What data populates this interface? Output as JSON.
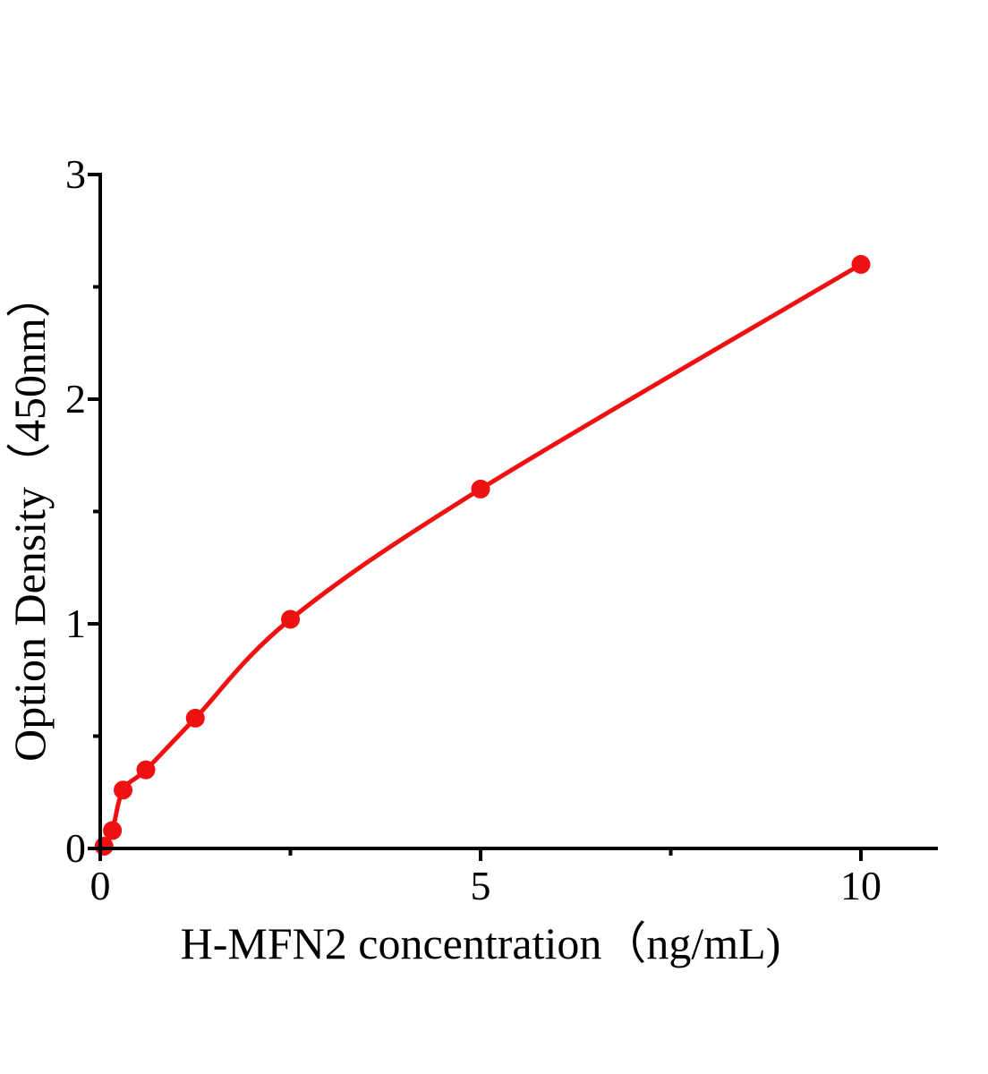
{
  "figure": {
    "background": "#ffffff"
  },
  "chart_data": {
    "type": "line",
    "title": "",
    "xlabel": "H-MFN2 concentration（ng/mL)",
    "ylabel": "Option Density（450nm）",
    "points": [
      {
        "x": 0.05,
        "y": 0.01
      },
      {
        "x": 0.16,
        "y": 0.08
      },
      {
        "x": 0.3,
        "y": 0.26
      },
      {
        "x": 0.6,
        "y": 0.35
      },
      {
        "x": 1.25,
        "y": 0.58
      },
      {
        "x": 2.5,
        "y": 1.02
      },
      {
        "x": 5,
        "y": 1.6
      },
      {
        "x": 10,
        "y": 2.6
      }
    ],
    "xlim": [
      0,
      11
    ],
    "ylim": [
      0,
      3
    ],
    "x_major_ticks": [
      {
        "value": 0,
        "label": "0"
      },
      {
        "value": 5,
        "label": "5"
      },
      {
        "value": 10,
        "label": "10"
      }
    ],
    "x_minor_ticks": [
      2.5,
      7.5
    ],
    "y_major_ticks": [
      {
        "value": 0,
        "label": "0"
      },
      {
        "value": 1,
        "label": "1"
      },
      {
        "value": 2,
        "label": "2"
      },
      {
        "value": 3,
        "label": "3"
      }
    ],
    "y_minor_ticks": [
      0.5,
      1.5,
      2.5
    ],
    "grid": false,
    "legend": false,
    "marker_style": "filled-circle",
    "colors": {
      "curve": "#ee1111",
      "marker": "#ee1111",
      "axis": "#000000",
      "text": "#000000"
    }
  }
}
